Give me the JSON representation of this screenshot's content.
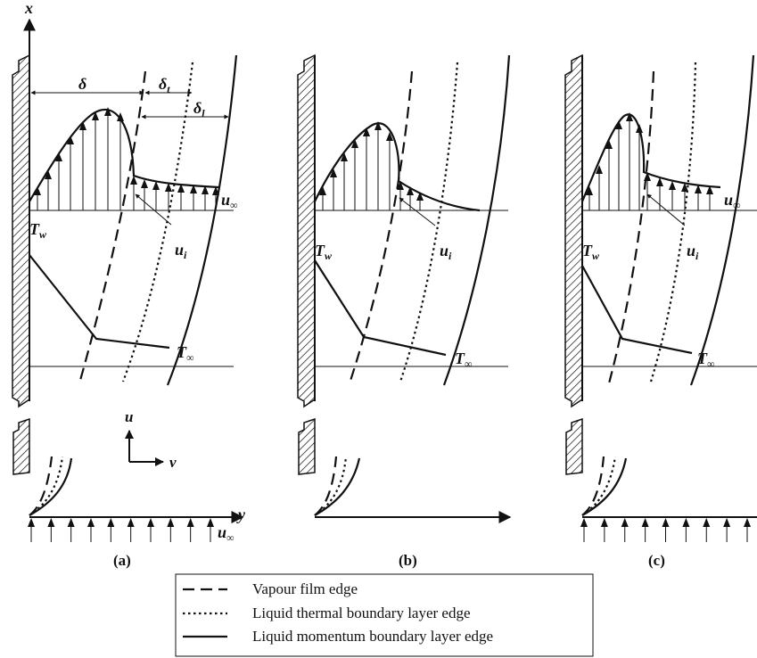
{
  "labels": {
    "x_axis": "x",
    "y_axis": "y",
    "u_arrow": "u",
    "v_arrow": "v",
    "delta": "δ",
    "delta_t": "δ",
    "delta_t_sub": "t",
    "delta_l": "δ",
    "delta_l_sub": "l",
    "T_w": "T",
    "T_w_sub": "w",
    "T_inf": "T",
    "T_inf_sub": "∞",
    "u_inf": "u",
    "u_inf_sub": "∞",
    "u_i": "u",
    "u_i_sub": "i"
  },
  "captions": {
    "a": "(a)",
    "b": "(b)",
    "c": "(c)"
  },
  "legend": [
    {
      "style": "dashed",
      "label": "Vapour film edge"
    },
    {
      "style": "dotted",
      "label": "Liquid thermal boundary layer edge"
    },
    {
      "style": "solid",
      "label": "Liquid momentum boundary layer edge"
    }
  ]
}
